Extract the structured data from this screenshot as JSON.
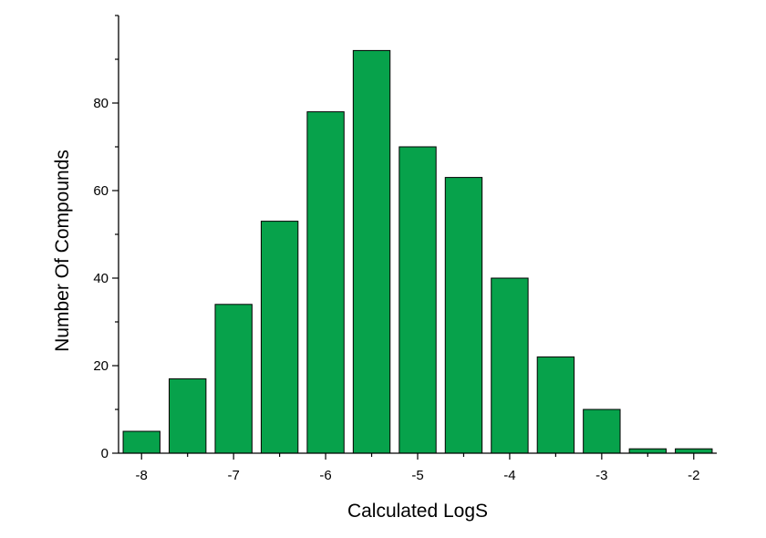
{
  "chart_data": {
    "type": "bar",
    "title": "",
    "xlabel": "Calculated LogS",
    "ylabel": "Number Of Compounds",
    "x_ticks": [
      -8,
      -7,
      -6,
      -5,
      -4,
      -3,
      -2
    ],
    "x_tick_labels": [
      "-8",
      "-7",
      "-6",
      "-5",
      "-4",
      "-3",
      "-2"
    ],
    "y_ticks": [
      0,
      20,
      40,
      60,
      80
    ],
    "y_tick_labels": [
      "0",
      "20",
      "40",
      "60",
      "80"
    ],
    "xlim": [
      -8.25,
      -1.75
    ],
    "ylim": [
      0,
      100
    ],
    "bar_width": 0.4,
    "bin_centers": [
      -8.0,
      -7.5,
      -7.0,
      -6.5,
      -6.0,
      -5.5,
      -5.0,
      -4.5,
      -4.0,
      -3.5,
      -3.0,
      -2.5,
      -2.0
    ],
    "values": [
      5,
      17,
      34,
      53,
      78,
      92,
      70,
      63,
      40,
      22,
      10,
      1,
      1
    ],
    "bar_color": "#07a24b",
    "bar_edge_color": "#000000",
    "grid": false,
    "legend": "none"
  }
}
